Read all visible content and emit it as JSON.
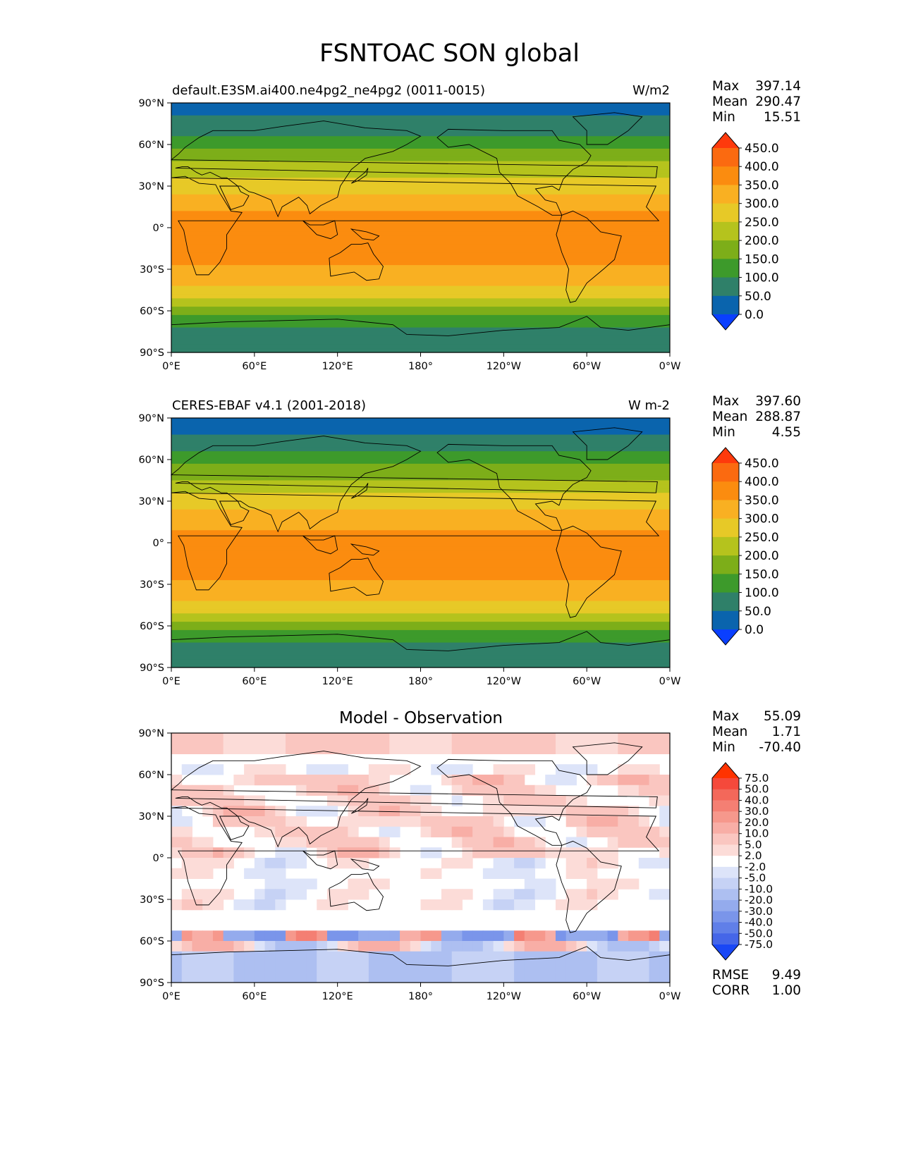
{
  "title": "FSNTOAC SON global",
  "axes": {
    "x_ticks": [
      "0°E",
      "60°E",
      "120°E",
      "180°",
      "120°W",
      "60°W",
      "0°W"
    ],
    "y_ticks": [
      "90°N",
      "60°N",
      "30°N",
      "0°",
      "30°S",
      "60°S",
      "90°S"
    ]
  },
  "panels": [
    {
      "label_left": "default.E3SM.ai400.ne4pg2_ne4pg2 (0011-0015)",
      "label_right": "W/m2",
      "label_center": "",
      "stats": [
        {
          "name": "Max",
          "value": "397.14"
        },
        {
          "name": "Mean",
          "value": "290.47"
        },
        {
          "name": "Min",
          "value": "15.51"
        }
      ],
      "extra_stats": []
    },
    {
      "label_left": "CERES-EBAF v4.1 (2001-2018)",
      "label_right": "W m-2",
      "label_center": "",
      "stats": [
        {
          "name": "Max",
          "value": "397.60"
        },
        {
          "name": "Mean",
          "value": "288.87"
        },
        {
          "name": "Min",
          "value": "4.55"
        }
      ],
      "extra_stats": []
    },
    {
      "label_left": "",
      "label_right": "",
      "label_center": "Model - Observation",
      "stats": [
        {
          "name": "Max",
          "value": "55.09"
        },
        {
          "name": "Mean",
          "value": "1.71"
        },
        {
          "name": "Min",
          "value": "-70.40"
        }
      ],
      "extra_stats": [
        {
          "name": "RMSE",
          "value": "9.49"
        },
        {
          "name": "CORR",
          "value": "1.00"
        }
      ]
    }
  ],
  "colorbars": {
    "field": {
      "levels": [
        "450.0",
        "400.0",
        "350.0",
        "300.0",
        "250.0",
        "200.0",
        "150.0",
        "100.0",
        "50.0",
        "0.0"
      ],
      "colors": [
        "#fe3a0c",
        "#fb6a10",
        "#fb8c0f",
        "#f9b022",
        "#e7c927",
        "#b5c31d",
        "#7dae19",
        "#3d9a2b",
        "#2f8069",
        "#0a64ad",
        "#0a3fff"
      ]
    },
    "diff": {
      "levels": [
        "75.0",
        "50.0",
        "40.0",
        "30.0",
        "20.0",
        "10.0",
        "5.0",
        "2.0",
        "-2.0",
        "-5.0",
        "-10.0",
        "-20.0",
        "-30.0",
        "-40.0",
        "-50.0",
        "-75.0"
      ],
      "colors": [
        "#ff3300",
        "#f5493b",
        "#f3685a",
        "#f47f73",
        "#f6988c",
        "#f8aea6",
        "#fac6c0",
        "#fcdcd8",
        "#ffffff",
        "#dde4f9",
        "#c6d2f5",
        "#adbff1",
        "#94abed",
        "#7a95ea",
        "#607fe8",
        "#4566e8",
        "#1947f5"
      ]
    }
  },
  "chart_data": [
    {
      "type": "heatmap",
      "title": "default.E3SM.ai400.ne4pg2_ne4pg2 (0011-0015)",
      "units": "W/m2",
      "xlim": [
        0,
        360
      ],
      "ylim": [
        -90,
        90
      ],
      "zonal_profile": {
        "lat": [
          90,
          75,
          65,
          55,
          45,
          35,
          25,
          15,
          5,
          -5,
          -15,
          -25,
          -35,
          -45,
          -55,
          -65,
          -75,
          -90
        ],
        "value": [
          30,
          60,
          110,
          160,
          210,
          255,
          300,
          340,
          365,
          370,
          365,
          355,
          335,
          290,
          225,
          140,
          80,
          70
        ]
      },
      "max": 397.14,
      "mean": 290.47,
      "min": 15.51
    },
    {
      "type": "heatmap",
      "title": "CERES-EBAF v4.1 (2001-2018)",
      "units": "W m-2",
      "xlim": [
        0,
        360
      ],
      "ylim": [
        -90,
        90
      ],
      "zonal_profile": {
        "lat": [
          90,
          75,
          65,
          55,
          45,
          35,
          25,
          15,
          5,
          -5,
          -15,
          -25,
          -35,
          -45,
          -55,
          -65,
          -75,
          -90
        ],
        "value": [
          25,
          55,
          105,
          155,
          205,
          250,
          300,
          335,
          360,
          365,
          360,
          355,
          330,
          285,
          220,
          135,
          75,
          70
        ]
      },
      "max": 397.6,
      "mean": 288.87,
      "min": 4.55
    },
    {
      "type": "heatmap",
      "title": "Model - Observation",
      "xlim": [
        0,
        360
      ],
      "ylim": [
        -90,
        90
      ],
      "max": 55.09,
      "mean": 1.71,
      "min": -70.4,
      "rmse": 9.49,
      "corr": 1.0
    }
  ]
}
